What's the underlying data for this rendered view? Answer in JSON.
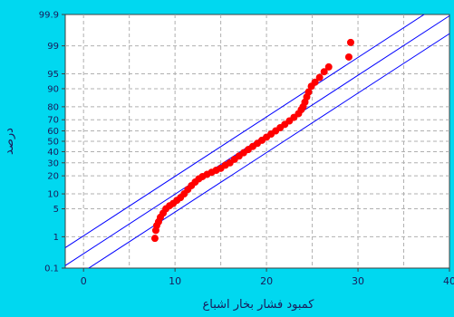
{
  "chart_data": {
    "type": "scatter",
    "title": "",
    "xlabel": "کمبود فشار بخار اشباع",
    "ylabel": "درصد",
    "xlim": [
      -2,
      40
    ],
    "ylim": [
      0.1,
      99.9
    ],
    "y_scale": "normal-probability",
    "xticks": [
      0,
      10,
      20,
      30,
      40
    ],
    "xtick_labels": [
      "0",
      "10",
      "20",
      "30",
      "40"
    ],
    "yticks": [
      0.1,
      1,
      5,
      10,
      20,
      30,
      40,
      50,
      60,
      70,
      80,
      90,
      95,
      99,
      99.9
    ],
    "ytick_labels": [
      "0.1",
      "1",
      "5",
      "10",
      "20",
      "30",
      "40",
      "50",
      "60",
      "70",
      "80",
      "90",
      "95",
      "99",
      "99.9"
    ],
    "grid": true,
    "colors": {
      "background": "#00d8f0",
      "plot_background": "#ffffff",
      "points": "#ff0000",
      "fit_line": "#0000ff",
      "confidence_band": "#0000ff",
      "grid": "#b0b0b0"
    },
    "series": [
      {
        "role": "data points",
        "points": [
          [
            7.8,
            0.9
          ],
          [
            7.9,
            1.5
          ],
          [
            8.0,
            2.0
          ],
          [
            8.2,
            2.5
          ],
          [
            8.4,
            3.2
          ],
          [
            8.7,
            4.0
          ],
          [
            9.0,
            5.0
          ],
          [
            9.4,
            5.8
          ],
          [
            9.8,
            6.5
          ],
          [
            10.2,
            7.5
          ],
          [
            10.6,
            8.5
          ],
          [
            11.0,
            10.0
          ],
          [
            11.4,
            12.0
          ],
          [
            11.8,
            14.0
          ],
          [
            12.2,
            16.0
          ],
          [
            12.6,
            18.0
          ],
          [
            13.0,
            19.5
          ],
          [
            13.5,
            21.0
          ],
          [
            14.0,
            22.5
          ],
          [
            14.5,
            24.0
          ],
          [
            15.0,
            25.5
          ],
          [
            15.5,
            28.0
          ],
          [
            16.0,
            30.0
          ],
          [
            16.5,
            33.0
          ],
          [
            17.0,
            36.0
          ],
          [
            17.5,
            39.0
          ],
          [
            18.0,
            42.0
          ],
          [
            18.5,
            45.0
          ],
          [
            19.0,
            48.0
          ],
          [
            19.5,
            51.0
          ],
          [
            20.0,
            54.0
          ],
          [
            20.5,
            57.0
          ],
          [
            21.0,
            60.0
          ],
          [
            21.5,
            63.0
          ],
          [
            22.0,
            66.0
          ],
          [
            22.5,
            69.0
          ],
          [
            23.0,
            72.0
          ],
          [
            23.5,
            75.0
          ],
          [
            23.8,
            78.0
          ],
          [
            24.0,
            80.0
          ],
          [
            24.2,
            83.0
          ],
          [
            24.4,
            86.0
          ],
          [
            24.6,
            88.5
          ],
          [
            24.9,
            91.0
          ],
          [
            25.3,
            92.5
          ],
          [
            25.8,
            94.0
          ],
          [
            26.3,
            95.5
          ],
          [
            26.8,
            96.5
          ],
          [
            29.0,
            98.0
          ],
          [
            29.2,
            99.2
          ]
        ]
      }
    ],
    "fit_line": {
      "mean": 18.9,
      "sd": 6.9
    },
    "confidence_band": {
      "half_width": 3.0
    }
  }
}
